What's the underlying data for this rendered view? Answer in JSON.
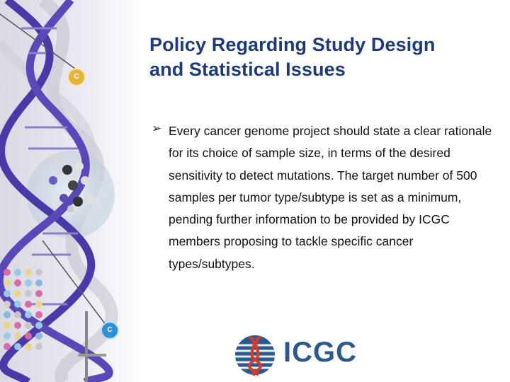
{
  "slide": {
    "title_lines": [
      "Policy Regarding Study Design",
      "and Statistical Issues"
    ],
    "bullet": {
      "marker_icon": "arrow-bullet-icon",
      "text": "Every cancer genome project should state a clear rationale for its choice of sample size, in terms of the desired sensitivity to detect mutations. The target number of 500 samples per tumor type/subtype is set as a minimum, pending further information to be provided by ICGC members proposing to tackle specific cancer types/subtypes."
    }
  },
  "decoration": {
    "badge_letter_top": "C",
    "badge_letter_bottom": "C"
  },
  "logo": {
    "text": "ICGC"
  },
  "colors": {
    "title": "#1f3a78",
    "logo_blue": "#2d5a8c",
    "dna_purple": "#4a3aa8",
    "badge_yellow": "#e2b53a",
    "badge_blue": "#2f90d6"
  }
}
